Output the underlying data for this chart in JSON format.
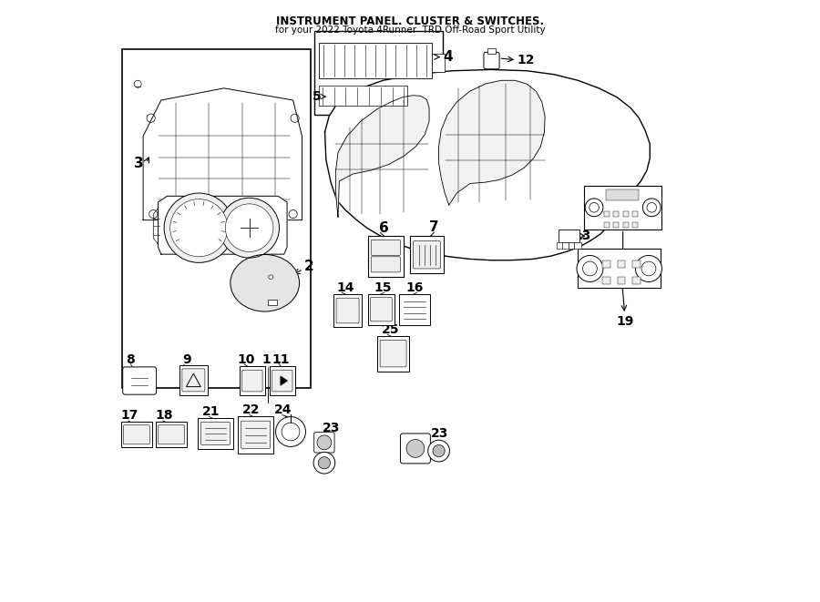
{
  "title": "INSTRUMENT PANEL. CLUSTER & SWITCHES.",
  "subtitle": "for your 2022 Toyota 4Runner  TRD Off-Road Sport Utility",
  "bg_color": "#ffffff",
  "line_color": "#000000",
  "fig_width": 9.0,
  "fig_height": 6.61,
  "dpi": 100
}
